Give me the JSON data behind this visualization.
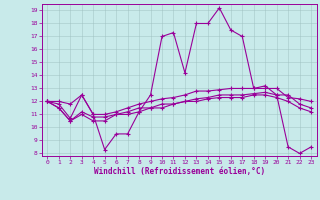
{
  "xlabel": "Windchill (Refroidissement éolien,°C)",
  "bg_color": "#c8eaea",
  "line_color": "#990099",
  "xlim": [
    -0.5,
    23.5
  ],
  "ylim": [
    7.8,
    19.5
  ],
  "xticks": [
    0,
    1,
    2,
    3,
    4,
    5,
    6,
    7,
    8,
    9,
    10,
    11,
    12,
    13,
    14,
    15,
    16,
    17,
    18,
    19,
    20,
    21,
    22,
    23
  ],
  "yticks": [
    8,
    9,
    10,
    11,
    12,
    13,
    14,
    15,
    16,
    17,
    18,
    19
  ],
  "lines": [
    {
      "x": [
        0,
        1,
        2,
        3,
        4,
        5,
        6,
        7,
        8,
        9,
        10,
        11,
        12,
        13,
        14,
        15,
        16,
        17,
        18,
        19,
        20,
        21,
        22,
        23
      ],
      "y": [
        12,
        12,
        11.8,
        12.5,
        11,
        8.3,
        9.5,
        9.5,
        11.2,
        12.5,
        17,
        17.3,
        14.2,
        18,
        18,
        19.2,
        17.5,
        17,
        13,
        13.2,
        12.5,
        8.5,
        8.0,
        8.5
      ]
    },
    {
      "x": [
        0,
        1,
        2,
        3,
        4,
        5,
        6,
        7,
        8,
        9,
        10,
        11,
        12,
        13,
        14,
        15,
        16,
        17,
        18,
        19,
        20,
        21,
        22,
        23
      ],
      "y": [
        12,
        11.8,
        10.7,
        12.5,
        11,
        11,
        11.2,
        11.5,
        11.8,
        12.0,
        12.2,
        12.3,
        12.5,
        12.8,
        12.8,
        12.9,
        13.0,
        13.0,
        13.0,
        13.0,
        13.0,
        12.3,
        12.2,
        12.0
      ]
    },
    {
      "x": [
        0,
        1,
        2,
        3,
        4,
        5,
        6,
        7,
        8,
        9,
        10,
        11,
        12,
        13,
        14,
        15,
        16,
        17,
        18,
        19,
        20,
        21,
        22,
        23
      ],
      "y": [
        12,
        11.5,
        10.5,
        11.2,
        10.8,
        10.8,
        11.0,
        11.2,
        11.5,
        11.5,
        11.8,
        11.8,
        12.0,
        12.2,
        12.3,
        12.5,
        12.5,
        12.5,
        12.6,
        12.7,
        12.5,
        12.5,
        11.8,
        11.5
      ]
    },
    {
      "x": [
        0,
        1,
        2,
        3,
        4,
        5,
        6,
        7,
        8,
        9,
        10,
        11,
        12,
        13,
        14,
        15,
        16,
        17,
        18,
        19,
        20,
        21,
        22,
        23
      ],
      "y": [
        12,
        11.5,
        10.5,
        11.0,
        10.5,
        10.5,
        11.0,
        11.0,
        11.2,
        11.5,
        11.5,
        11.8,
        12.0,
        12.0,
        12.2,
        12.3,
        12.3,
        12.3,
        12.5,
        12.5,
        12.3,
        12.0,
        11.5,
        11.2
      ]
    }
  ]
}
